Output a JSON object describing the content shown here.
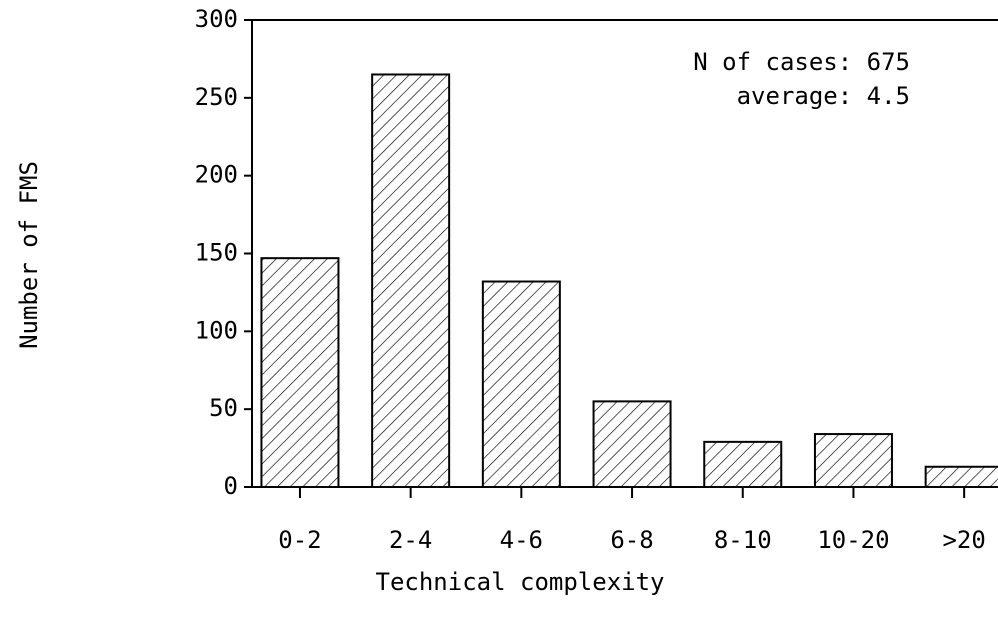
{
  "chart_data": {
    "type": "bar",
    "x_label": "Technical complexity",
    "y_label": "Number of FMS",
    "annotations": [
      "N of cases: 675",
      "average: 4.5"
    ],
    "categories": [
      "0-2",
      "2-4",
      "4-6",
      "6-8",
      "8-10",
      "10-20",
      ">20"
    ],
    "values": [
      147,
      265,
      132,
      55,
      29,
      34,
      13
    ],
    "color": "#000000",
    "ylim": [
      0,
      300
    ],
    "yticks": [
      0,
      50,
      100,
      150,
      200,
      250,
      300
    ],
    "grid": false
  }
}
